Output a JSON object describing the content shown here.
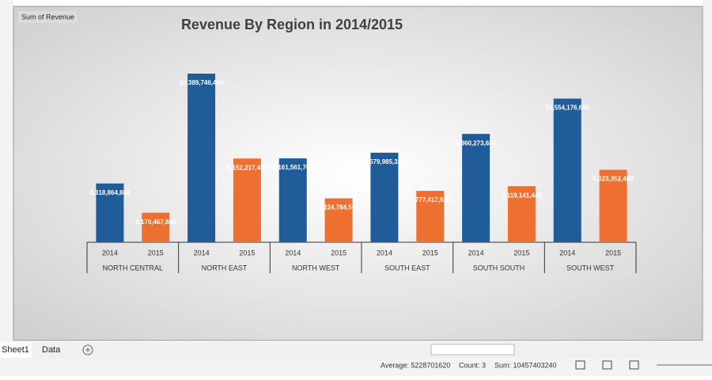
{
  "chart_data": {
    "type": "bar",
    "title": "Revenue By Region in 2014/2015",
    "field_button": "Sum of Revenue",
    "categories": [
      "NORTH CENTRAL",
      "NORTH EAST",
      "NORTH WEST",
      "SOUTH EAST",
      "SOUTH SOUTH",
      "SOUTH WEST"
    ],
    "series": [
      {
        "name": "2014",
        "color": "#1f5c99",
        "values": [
          4318864800,
          12389746400,
          6161561760,
          6579985320,
          7960273680,
          10554176640
        ],
        "value_labels": [
          "4,318,864,800",
          "12,389,746,400",
          "6,161,561,760",
          "6,579,985,320",
          "7,960,273,680",
          "10,554,176,640"
        ]
      },
      {
        "name": "2015",
        "color": "#ed7031",
        "values": [
          2170467840,
          6152217480,
          3224784560,
          3777417920,
          4119141440,
          5323352400
        ],
        "value_labels": [
          "2,170,467,840",
          "6,152,217,480",
          "3,224,784,560",
          "3,777,417,920",
          "4,119,141,440",
          "5,323,352,400"
        ]
      }
    ]
  },
  "sheet_tabs": [
    "Sheet1",
    "Data"
  ],
  "status_bar": {
    "average": "Average: 5228701620",
    "count": "Count: 3",
    "sum": "Sum: 10457403240"
  }
}
